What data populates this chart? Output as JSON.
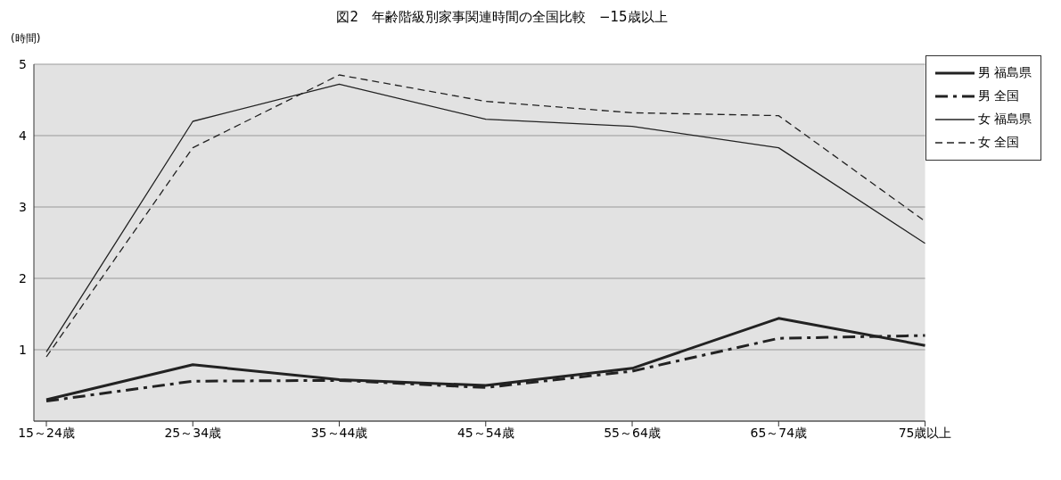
{
  "chart_data": {
    "type": "line",
    "title": "図2　年齢階級別家事関連時間の全国比較　−15歳以上",
    "ylabel": "(時間)",
    "categories": [
      "15～24歳",
      "25～34歳",
      "35～44歳",
      "45～54歳",
      "55～64歳",
      "65～74歳",
      "75歳以上"
    ],
    "series": [
      {
        "name": "男 福島県",
        "color": "#222222",
        "line_style": "solid",
        "values": [
          0.3,
          0.79,
          0.58,
          0.5,
          0.74,
          1.44,
          1.06
        ]
      },
      {
        "name": "男 全国",
        "color": "#222222",
        "line_style": "dashed",
        "values": [
          0.28,
          0.56,
          0.57,
          0.47,
          0.7,
          1.16,
          1.2
        ]
      },
      {
        "name": "女 福島県",
        "color": "#222222",
        "line_style": "solid",
        "values": [
          0.97,
          4.2,
          4.72,
          4.23,
          4.13,
          3.83,
          2.49
        ]
      },
      {
        "name": "女 全国",
        "color": "#222222",
        "line_style": "dashed",
        "values": [
          0.9,
          3.83,
          4.85,
          4.48,
          4.32,
          4.28,
          2.8
        ]
      }
    ],
    "ylim": [
      0,
      5
    ],
    "yticks": [
      1,
      2,
      3,
      4,
      5
    ],
    "grid": "y",
    "legend": "top right",
    "marker": "none"
  }
}
